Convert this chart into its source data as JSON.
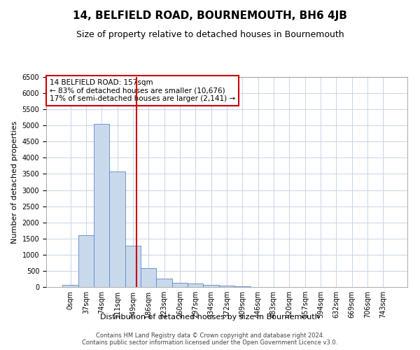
{
  "title": "14, BELFIELD ROAD, BOURNEMOUTH, BH6 4JB",
  "subtitle": "Size of property relative to detached houses in Bournemouth",
  "xlabel": "Distribution of detached houses by size in Bournemouth",
  "ylabel": "Number of detached properties",
  "footnote1": "Contains HM Land Registry data © Crown copyright and database right 2024.",
  "footnote2": "Contains public sector information licensed under the Open Government Licence v3.0.",
  "bar_labels": [
    "0sqm",
    "37sqm",
    "74sqm",
    "111sqm",
    "149sqm",
    "186sqm",
    "223sqm",
    "260sqm",
    "297sqm",
    "334sqm",
    "372sqm",
    "409sqm",
    "446sqm",
    "483sqm",
    "520sqm",
    "557sqm",
    "594sqm",
    "632sqm",
    "669sqm",
    "706sqm",
    "743sqm"
  ],
  "bar_values": [
    60,
    1600,
    5050,
    3580,
    1280,
    590,
    270,
    140,
    110,
    70,
    40,
    15,
    5,
    3,
    2,
    1,
    1,
    0,
    0,
    0,
    0
  ],
  "bar_color": "#c9d9ec",
  "bar_edge_color": "#5b8ac5",
  "ylim": [
    0,
    6500
  ],
  "yticks": [
    0,
    500,
    1000,
    1500,
    2000,
    2500,
    3000,
    3500,
    4000,
    4500,
    5000,
    5500,
    6000,
    6500
  ],
  "vline_color": "#cc0000",
  "annotation_text": "14 BELFIELD ROAD: 157sqm\n← 83% of detached houses are smaller (10,676)\n17% of semi-detached houses are larger (2,141) →",
  "annotation_box_color": "#cc0000",
  "background_color": "#ffffff",
  "grid_color": "#c8d4e8",
  "title_fontsize": 11,
  "subtitle_fontsize": 9,
  "axis_fontsize": 8,
  "tick_fontsize": 7,
  "footnote_fontsize": 6
}
